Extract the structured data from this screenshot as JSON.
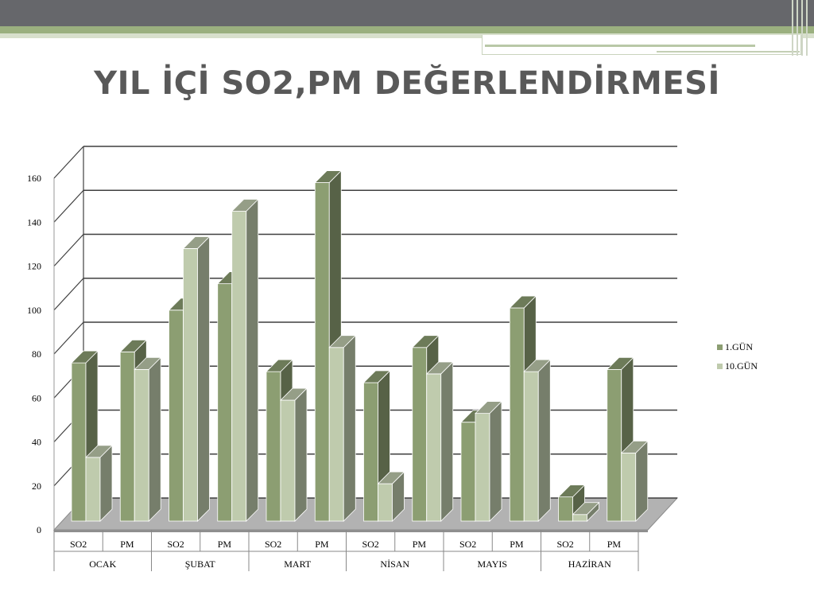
{
  "slide": {
    "title": "YIL İÇİ SO2,PM DEĞERLENDİRMESİ"
  },
  "colors": {
    "series1": "#8c9e72",
    "series2": "#bfcbad",
    "grid": "#3f3f3f"
  },
  "chart_data": {
    "type": "bar",
    "style": "3d-clustered-column",
    "groups": [
      "OCAK",
      "ŞUBAT",
      "MART",
      "NİSAN",
      "MAYIS",
      "HAZİRAN"
    ],
    "categories": [
      "SO2",
      "PM",
      "SO2",
      "PM",
      "SO2",
      "PM",
      "SO2",
      "PM",
      "SO2",
      "PM",
      "SO2",
      "PM"
    ],
    "series": [
      {
        "name": "1.GÜN",
        "values": [
          72,
          77,
          96,
          108,
          68,
          154,
          63,
          79,
          45,
          97,
          11,
          69
        ]
      },
      {
        "name": "10.GÜN",
        "values": [
          29,
          69,
          124,
          141,
          55,
          79,
          17,
          67,
          49,
          68,
          3,
          31
        ]
      }
    ],
    "ylim": [
      0,
      160
    ],
    "yticks": [
      "0",
      "20",
      "40",
      "60",
      "80",
      "100",
      "120",
      "140",
      "160"
    ],
    "grid": true,
    "legend": "right"
  }
}
